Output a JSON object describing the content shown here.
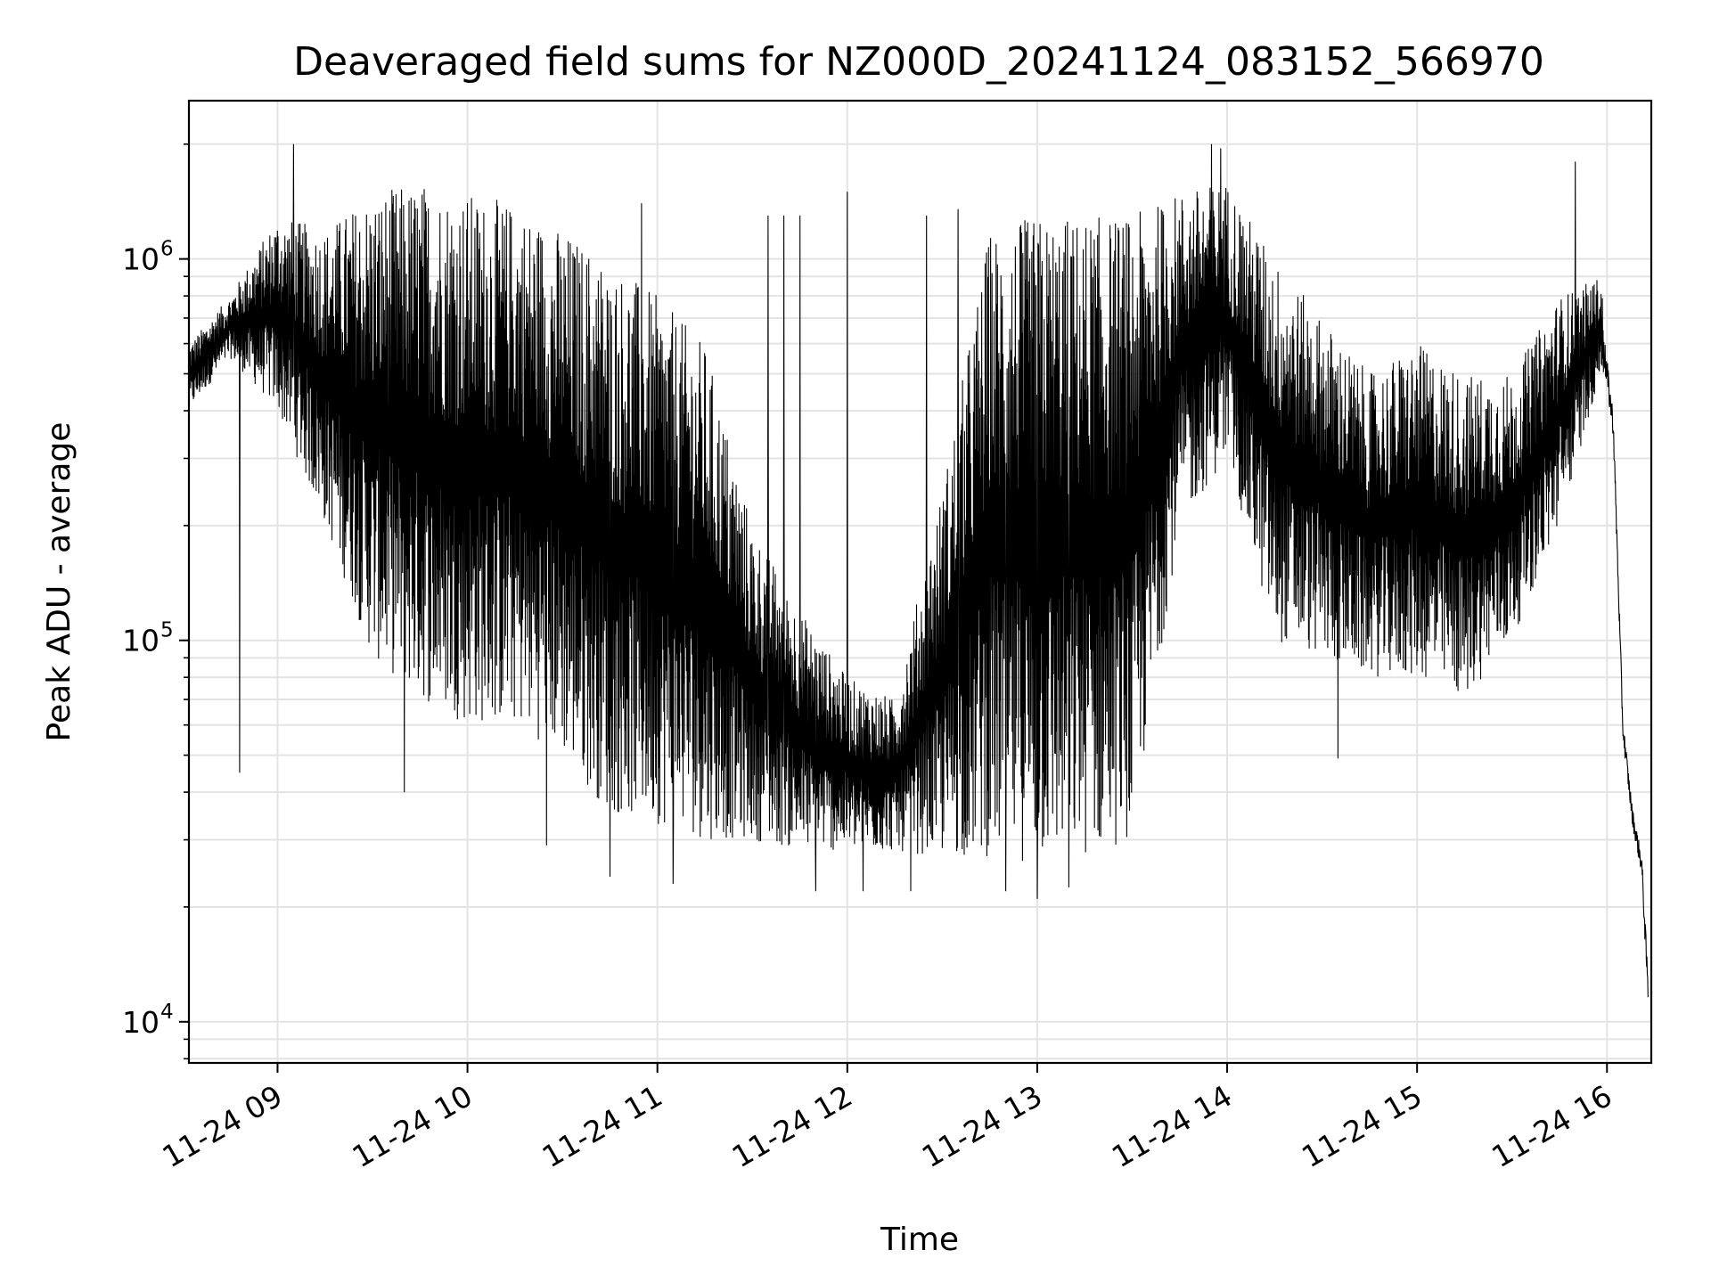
{
  "chart_data": {
    "type": "line",
    "title": "Deaveraged field sums for NZ000D_20241124_083152_566970",
    "xlabel": "Time",
    "ylabel": "Peak ADU - average",
    "yscale": "log",
    "xlim": [
      "2024-11-24T08:32",
      "2024-11-24T16:14"
    ],
    "ylim": [
      7800,
      2600000
    ],
    "grid": true,
    "xticks": [
      {
        "t": "2024-11-24T09:00",
        "label": "11-24 09"
      },
      {
        "t": "2024-11-24T10:00",
        "label": "11-24 10"
      },
      {
        "t": "2024-11-24T11:00",
        "label": "11-24 11"
      },
      {
        "t": "2024-11-24T12:00",
        "label": "11-24 12"
      },
      {
        "t": "2024-11-24T13:00",
        "label": "11-24 13"
      },
      {
        "t": "2024-11-24T14:00",
        "label": "11-24 14"
      },
      {
        "t": "2024-11-24T15:00",
        "label": "11-24 15"
      },
      {
        "t": "2024-11-24T16:00",
        "label": "11-24 16"
      }
    ],
    "yticks": [
      {
        "value": 10000,
        "label": "10",
        "exp": "4"
      },
      {
        "value": 100000,
        "label": "10",
        "exp": "5"
      },
      {
        "value": 1000000,
        "label": "10",
        "exp": "6"
      }
    ],
    "series": [
      {
        "color": "#000000",
        "envelope": [
          {
            "t": "2024-11-24T08:32",
            "high": 600000,
            "low": 400000
          },
          {
            "t": "2024-11-24T08:45",
            "high": 800000,
            "low": 550000
          },
          {
            "t": "2024-11-24T09:00",
            "high": 1300000,
            "low": 400000
          },
          {
            "t": "2024-11-24T09:15",
            "high": 1200000,
            "low": 200000
          },
          {
            "t": "2024-11-24T09:30",
            "high": 1500000,
            "low": 90000
          },
          {
            "t": "2024-11-24T09:45",
            "high": 1600000,
            "low": 70000
          },
          {
            "t": "2024-11-24T10:00",
            "high": 1500000,
            "low": 60000
          },
          {
            "t": "2024-11-24T10:15",
            "high": 1400000,
            "low": 60000
          },
          {
            "t": "2024-11-24T10:30",
            "high": 1200000,
            "low": 50000
          },
          {
            "t": "2024-11-24T10:45",
            "high": 1000000,
            "low": 35000
          },
          {
            "t": "2024-11-24T11:00",
            "high": 800000,
            "low": 33000
          },
          {
            "t": "2024-11-24T11:15",
            "high": 600000,
            "low": 30000
          },
          {
            "t": "2024-11-24T11:30",
            "high": 200000,
            "low": 30000
          },
          {
            "t": "2024-11-24T11:45",
            "high": 120000,
            "low": 28000
          },
          {
            "t": "2024-11-24T12:00",
            "high": 80000,
            "low": 28000
          },
          {
            "t": "2024-11-24T12:15",
            "high": 70000,
            "low": 28000
          },
          {
            "t": "2024-11-24T12:30",
            "high": 250000,
            "low": 27000
          },
          {
            "t": "2024-11-24T12:45",
            "high": 1200000,
            "low": 27000
          },
          {
            "t": "2024-11-24T13:00",
            "high": 1300000,
            "low": 26000
          },
          {
            "t": "2024-11-24T13:15",
            "high": 1300000,
            "low": 27000
          },
          {
            "t": "2024-11-24T13:30",
            "high": 1300000,
            "low": 30000
          },
          {
            "t": "2024-11-24T13:45",
            "high": 1500000,
            "low": 200000
          },
          {
            "t": "2024-11-24T14:00",
            "high": 1600000,
            "low": 300000
          },
          {
            "t": "2024-11-24T14:15",
            "high": 1000000,
            "low": 100000
          },
          {
            "t": "2024-11-24T14:30",
            "high": 700000,
            "low": 90000
          },
          {
            "t": "2024-11-24T14:45",
            "high": 500000,
            "low": 80000
          },
          {
            "t": "2024-11-24T15:00",
            "high": 600000,
            "low": 80000
          },
          {
            "t": "2024-11-24T15:15",
            "high": 500000,
            "low": 70000
          },
          {
            "t": "2024-11-24T15:30",
            "high": 500000,
            "low": 100000
          },
          {
            "t": "2024-11-24T15:45",
            "high": 800000,
            "low": 200000
          },
          {
            "t": "2024-11-24T15:58",
            "high": 900000,
            "low": 500000
          },
          {
            "t": "2024-11-24T16:02",
            "high": 450000,
            "low": 300000
          },
          {
            "t": "2024-11-24T16:05",
            "high": 70000,
            "low": 50000
          },
          {
            "t": "2024-11-24T16:08",
            "high": 40000,
            "low": 30000
          },
          {
            "t": "2024-11-24T16:11",
            "high": 30000,
            "low": 22000
          },
          {
            "t": "2024-11-24T16:13",
            "high": 15000,
            "low": 9500
          }
        ],
        "spikes_high": [
          {
            "t": "2024-11-24T09:05",
            "value": 2000000
          },
          {
            "t": "2024-11-24T13:55",
            "value": 2000000
          },
          {
            "t": "2024-11-24T13:58",
            "value": 1950000
          },
          {
            "t": "2024-11-24T15:50",
            "value": 1800000
          },
          {
            "t": "2024-11-24T12:00",
            "value": 1500000
          },
          {
            "t": "2024-11-24T11:40",
            "value": 1300000
          },
          {
            "t": "2024-11-24T11:45",
            "value": 1300000
          },
          {
            "t": "2024-11-24T10:55",
            "value": 1400000
          },
          {
            "t": "2024-11-24T11:35",
            "value": 1300000
          },
          {
            "t": "2024-11-24T12:25",
            "value": 1300000
          },
          {
            "t": "2024-11-24T12:35",
            "value": 1350000
          }
        ],
        "spikes_low": [
          {
            "t": "2024-11-24T08:48",
            "value": 45000
          },
          {
            "t": "2024-11-24T09:40",
            "value": 40000
          },
          {
            "t": "2024-11-24T10:25",
            "value": 29000
          },
          {
            "t": "2024-11-24T10:45",
            "value": 24000
          },
          {
            "t": "2024-11-24T11:05",
            "value": 23000
          },
          {
            "t": "2024-11-24T11:50",
            "value": 22000
          },
          {
            "t": "2024-11-24T12:05",
            "value": 22000
          },
          {
            "t": "2024-11-24T12:20",
            "value": 22000
          },
          {
            "t": "2024-11-24T12:50",
            "value": 22000
          },
          {
            "t": "2024-11-24T13:00",
            "value": 21000
          },
          {
            "t": "2024-11-24T13:10",
            "value": 22500
          },
          {
            "t": "2024-11-24T14:35",
            "value": 49000
          }
        ]
      }
    ]
  }
}
